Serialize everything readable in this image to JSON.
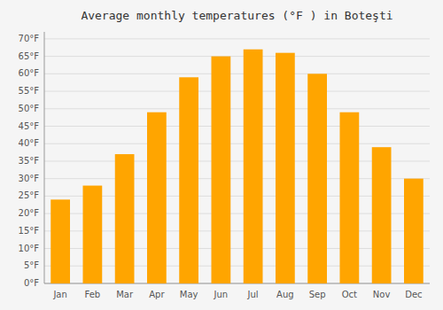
{
  "chart_data": {
    "type": "bar",
    "title": "Average monthly temperatures (°F ) in Boteşti",
    "categories": [
      "Jan",
      "Feb",
      "Mar",
      "Apr",
      "May",
      "Jun",
      "Jul",
      "Aug",
      "Sep",
      "Oct",
      "Nov",
      "Dec"
    ],
    "values": [
      24.0,
      28.0,
      37.0,
      49.0,
      59.0,
      65.0,
      67.0,
      66.0,
      60.0,
      49.0,
      39.0,
      30.0
    ],
    "color": "#FFA500",
    "ylim": [
      0,
      72
    ],
    "yticks": [
      {
        "value": 0,
        "label": "0°F"
      },
      {
        "value": 5,
        "label": "5°F"
      },
      {
        "value": 10,
        "label": "10°F"
      },
      {
        "value": 15,
        "label": "15°F"
      },
      {
        "value": 20,
        "label": "20°F"
      },
      {
        "value": 25,
        "label": "25°F"
      },
      {
        "value": 30,
        "label": "30°F"
      },
      {
        "value": 35,
        "label": "35°F"
      },
      {
        "value": 40,
        "label": "40°F"
      },
      {
        "value": 45,
        "label": "45°F"
      },
      {
        "value": 50,
        "label": "50°F"
      },
      {
        "value": 55,
        "label": "55°F"
      },
      {
        "value": 60,
        "label": "60°F"
      },
      {
        "value": 65,
        "label": "65°F"
      },
      {
        "value": 70,
        "label": "70°F"
      }
    ],
    "grid": true
  }
}
